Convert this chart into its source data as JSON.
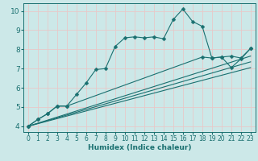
{
  "xlabel": "Humidex (Indice chaleur)",
  "background_color": "#cce8e8",
  "grid_color": "#e8c8c8",
  "line_color": "#1a7070",
  "xlim": [
    -0.5,
    23.5
  ],
  "ylim": [
    3.7,
    10.4
  ],
  "xticks": [
    0,
    1,
    2,
    3,
    4,
    5,
    6,
    7,
    8,
    9,
    10,
    11,
    12,
    13,
    14,
    15,
    16,
    17,
    18,
    19,
    20,
    21,
    22,
    23
  ],
  "yticks": [
    4,
    5,
    6,
    7,
    8,
    9,
    10
  ],
  "curve1_x": [
    0,
    1,
    2,
    3,
    4,
    5,
    6,
    7,
    8,
    9,
    10,
    11,
    12,
    13,
    14,
    15,
    16,
    17,
    18,
    19,
    20,
    21,
    22,
    23
  ],
  "curve1_y": [
    4.0,
    4.35,
    4.65,
    5.05,
    5.05,
    5.65,
    6.25,
    6.95,
    7.0,
    8.15,
    8.6,
    8.65,
    8.6,
    8.65,
    8.55,
    9.55,
    10.1,
    9.45,
    9.2,
    7.55,
    7.6,
    7.05,
    7.5,
    8.05
  ],
  "curve2_x": [
    0,
    1,
    2,
    3,
    4,
    18,
    19,
    20,
    21,
    22,
    23
  ],
  "curve2_y": [
    4.0,
    4.35,
    4.65,
    5.05,
    5.05,
    7.6,
    7.55,
    7.6,
    7.65,
    7.55,
    8.05
  ],
  "curve3_x": [
    0,
    23
  ],
  "curve3_y": [
    4.0,
    7.65
  ],
  "curve4_x": [
    0,
    23
  ],
  "curve4_y": [
    4.0,
    7.35
  ],
  "curve5_x": [
    0,
    23
  ],
  "curve5_y": [
    4.0,
    7.05
  ]
}
